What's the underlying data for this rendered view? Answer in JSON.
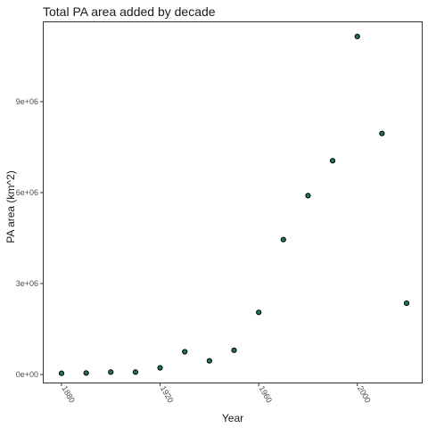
{
  "chart_data": {
    "type": "scatter",
    "title": "Total PA area added by decade",
    "xlabel": "Year",
    "ylabel": "PA area (km^2)",
    "x": [
      1880,
      1890,
      1900,
      1910,
      1920,
      1930,
      1940,
      1950,
      1960,
      1970,
      1980,
      1990,
      2000,
      2010,
      2020
    ],
    "y": [
      40000,
      50000,
      80000,
      80000,
      220000,
      750000,
      450000,
      800000,
      2050000,
      4450000,
      5900000,
      7050000,
      11150000,
      7950000,
      2350000
    ],
    "xlim": [
      1880,
      2020
    ],
    "ylim": [
      -200000,
      11700000
    ],
    "x_ticks": [
      {
        "value": 1880,
        "label": "1880"
      },
      {
        "value": 1920,
        "label": "1920"
      },
      {
        "value": 1960,
        "label": "1960"
      },
      {
        "value": 2000,
        "label": "2000"
      }
    ],
    "y_ticks": [
      {
        "value": 0,
        "label": "0e+00"
      },
      {
        "value": 3000000,
        "label": "3e+06"
      },
      {
        "value": 6000000,
        "label": "6e+06"
      },
      {
        "value": 9000000,
        "label": "9e+06"
      }
    ],
    "grid": false,
    "legend": "none",
    "point_color": "#1f7a4a",
    "point_outline": "#000000",
    "background": "#ffffff",
    "panel_border_color": "#333333"
  }
}
